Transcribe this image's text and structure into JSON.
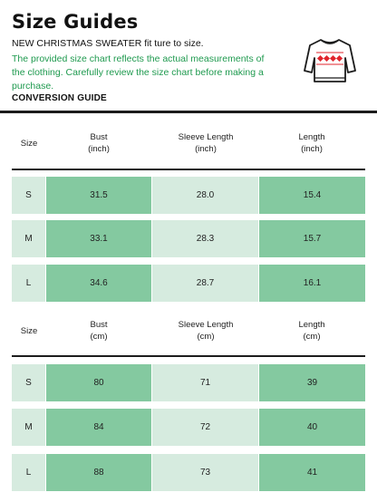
{
  "header": {
    "title": "Size Guides",
    "subtitle": "NEW CHRISTMAS SWEATER fit ture to size.",
    "note": "The provided size chart reflects the actual measurements of the clothing. Carefully review the size chart before making a purchase.",
    "section_label": "CONVERSION GUIDE",
    "icon": "christmas-sweater-icon"
  },
  "inch_table": {
    "headers": {
      "size": "Size",
      "bust": "Bust",
      "bust_unit": "(inch)",
      "sleeve": "Sleeve Length",
      "sleeve_unit": "(inch)",
      "length": "Length",
      "length_unit": "(inch)"
    },
    "rows": [
      {
        "size": "S",
        "bust": "31.5",
        "sleeve": "28.0",
        "length": "15.4"
      },
      {
        "size": "M",
        "bust": "33.1",
        "sleeve": "28.3",
        "length": "15.7"
      },
      {
        "size": "L",
        "bust": "34.6",
        "sleeve": "28.7",
        "length": "16.1"
      }
    ]
  },
  "cm_table": {
    "headers": {
      "size": "Size",
      "bust": "Bust",
      "bust_unit": "(cm)",
      "sleeve": "Sleeve Length",
      "sleeve_unit": "(cm)",
      "length": "Length",
      "length_unit": "(cm)"
    },
    "rows": [
      {
        "size": "S",
        "bust": "80",
        "sleeve": "71",
        "length": "39"
      },
      {
        "size": "M",
        "bust": "84",
        "sleeve": "72",
        "length": "40"
      },
      {
        "size": "L",
        "bust": "88",
        "sleeve": "73",
        "length": "41"
      }
    ]
  },
  "colors": {
    "accent_green": "#84c9a0",
    "light_green": "#d6ebdf",
    "note_text": "#1f9a4f",
    "motif_red": "#e0242c"
  }
}
